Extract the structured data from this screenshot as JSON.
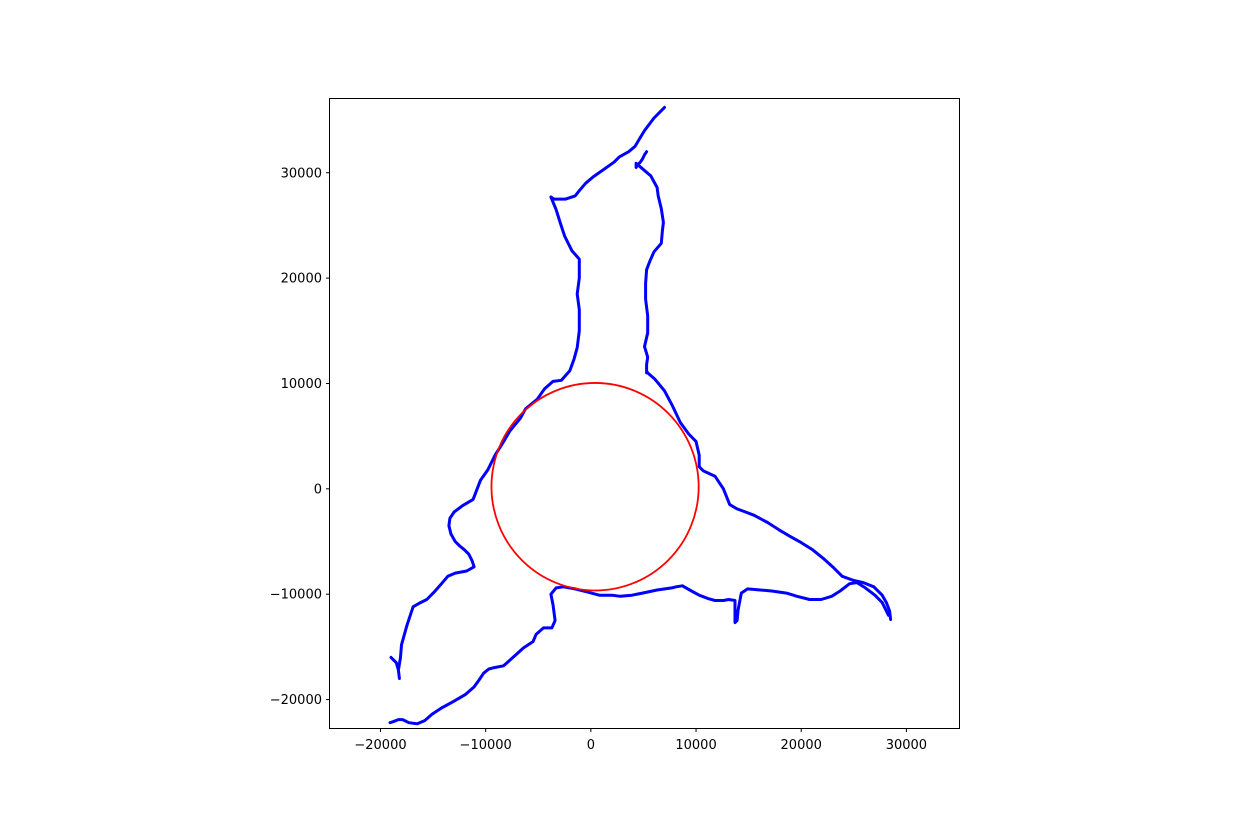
{
  "chart_data": {
    "type": "line",
    "title": "",
    "xlabel": "",
    "ylabel": "",
    "xlim": [
      -24800,
      35000
    ],
    "ylim": [
      -22700,
      37000
    ],
    "xticks": [
      -20000,
      -10000,
      0,
      10000,
      20000,
      30000
    ],
    "yticks": [
      -20000,
      -10000,
      0,
      10000,
      20000,
      30000
    ],
    "xtick_labels": [
      "−20000",
      "−10000",
      "0",
      "10000",
      "20000",
      "30000"
    ],
    "ytick_labels": [
      "−20000",
      "−10000",
      "0",
      "10000",
      "20000",
      "30000"
    ],
    "grid": false,
    "legend": "none",
    "series": [
      {
        "color": "#0000ff",
        "x": [
          7000,
          6000,
          5100,
          4800,
          4200,
          3600,
          2700,
          2200,
          1200,
          200,
          -500,
          -1100,
          -1500,
          -2400,
          -3500,
          -3800,
          -3300,
          -2900,
          -2500,
          -1800,
          -1100,
          -1100,
          -1300,
          -1100,
          -1100,
          -1300,
          -1600,
          -2000,
          -2800,
          -3600,
          -4400,
          -5100,
          -6200,
          -6700,
          -7700,
          -8400,
          -9100,
          -9800,
          -10500,
          -11200,
          -12200,
          -13000,
          -13400,
          -13500,
          -13300,
          -12900,
          -12500,
          -12000,
          -11600,
          -11300,
          -11100,
          -11800,
          -12900,
          -13600,
          -14200,
          -14900,
          -15600,
          -16200,
          -16900,
          -17500,
          -18000,
          -18100,
          -18300,
          -18200,
          -18300,
          -18500,
          -19000
        ],
        "y": [
          36200,
          35200,
          34000,
          33500,
          32500,
          32000,
          31500,
          31000,
          30300,
          29600,
          29000,
          28300,
          27800,
          27500,
          27500,
          27700,
          26500,
          25200,
          24000,
          22600,
          21800,
          20000,
          18500,
          17000,
          15000,
          13400,
          12300,
          11200,
          10300,
          10200,
          9500,
          8500,
          7600,
          6700,
          5500,
          4300,
          3200,
          1800,
          800,
          -1000,
          -1600,
          -2200,
          -2800,
          -3500,
          -4300,
          -5000,
          -5400,
          -5800,
          -6200,
          -6800,
          -7400,
          -7800,
          -8000,
          -8300,
          -9000,
          -9800,
          -10500,
          -10800,
          -11200,
          -13000,
          -14800,
          -16000,
          -17200,
          -18000,
          -17200,
          -16500,
          -16000
        ]
      },
      {
        "color": "#0000ff",
        "x": [
          5300,
          5100,
          4900,
          4700,
          4400,
          4300,
          4300,
          4300,
          5700,
          6300,
          6400,
          6700,
          6900,
          6800,
          6700,
          6000,
          5600,
          5300,
          5200,
          5200,
          5400,
          5400,
          5100,
          5400,
          5300,
          5300,
          5300,
          5300,
          5300,
          5400,
          6100,
          7000,
          7800,
          8500,
          9300,
          10000,
          10300,
          10300,
          10700,
          11800,
          12600,
          13200,
          13900,
          14700,
          15500,
          16800,
          17900,
          18900,
          20000,
          21100,
          22100,
          23100,
          23900,
          25000,
          25900,
          26900,
          27700,
          28100,
          28400,
          28500
        ],
        "y": [
          32000,
          31700,
          31300,
          31000,
          30700,
          30500,
          30700,
          30900,
          29700,
          28600,
          27800,
          26600,
          25300,
          24500,
          23300,
          22500,
          21600,
          20800,
          19500,
          18000,
          16400,
          14800,
          13500,
          12500,
          11800,
          11300,
          11000,
          11000,
          11200,
          11000,
          10400,
          9300,
          7800,
          6300,
          5200,
          4500,
          3200,
          2100,
          1700,
          1200,
          0,
          -1500,
          -1900,
          -2200,
          -2500,
          -3200,
          -3900,
          -4500,
          -5100,
          -5800,
          -6600,
          -7500,
          -8300,
          -8700,
          -8900,
          -9300,
          -10100,
          -10800,
          -11600,
          -12400
        ]
      },
      {
        "color": "#0000ff",
        "x": [
          28300,
          27700,
          27000,
          26100,
          25300,
          24600,
          23700,
          22900,
          21900,
          20800,
          19600,
          18600,
          17200,
          16100,
          14900,
          14300,
          14000,
          13900,
          13700,
          13700,
          13100,
          12600,
          11800,
          11100,
          10300,
          9400,
          8700,
          8100,
          7700,
          6300,
          4900,
          3900,
          2800,
          2000,
          800,
          -300,
          -1500,
          -2600,
          -3300,
          -3800,
          -3600,
          -3400,
          -3700,
          -4500,
          -5200,
          -5500,
          -6400,
          -7300,
          -8300,
          -9300,
          -9700,
          -10200,
          -10600,
          -11100,
          -11900,
          -13100,
          -14200,
          -15100,
          -15800,
          -16500,
          -17300,
          -17900,
          -18300,
          -18800,
          -19100
        ],
        "y": [
          -12000,
          -10800,
          -10100,
          -9400,
          -8900,
          -9000,
          -9700,
          -10200,
          -10500,
          -10500,
          -10200,
          -9900,
          -9700,
          -9600,
          -9500,
          -9900,
          -11500,
          -12500,
          -12700,
          -10600,
          -10500,
          -10600,
          -10600,
          -10400,
          -10100,
          -9600,
          -9200,
          -9300,
          -9400,
          -9600,
          -9900,
          -10100,
          -10200,
          -10100,
          -10100,
          -9800,
          -9500,
          -9300,
          -9400,
          -10000,
          -11000,
          -12500,
          -13200,
          -13200,
          -13800,
          -14500,
          -15100,
          -15900,
          -16800,
          -17000,
          -17100,
          -17500,
          -18100,
          -18800,
          -19500,
          -20200,
          -20800,
          -21400,
          -22000,
          -22300,
          -22200,
          -21900,
          -21900,
          -22100,
          -22200
        ]
      }
    ],
    "shapes": [
      {
        "type": "circle",
        "color": "#ff0000",
        "center": [
          400,
          200
        ],
        "radius": 9850
      }
    ]
  }
}
